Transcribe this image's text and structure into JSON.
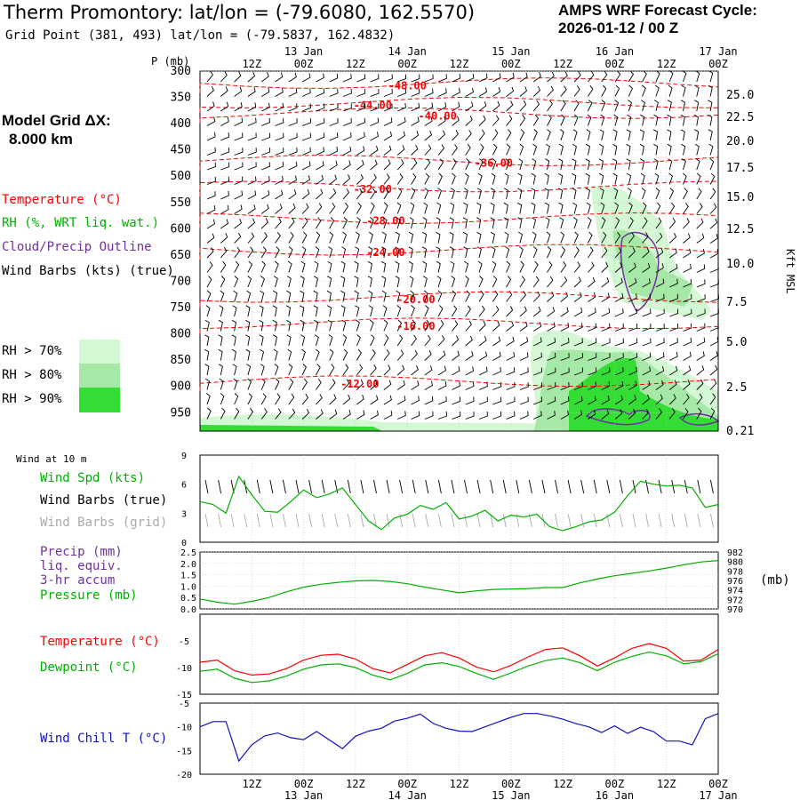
{
  "header": {
    "title": "Therm Promontory:  lat/lon = (-79.6080, 162.5570)",
    "subtitle": "Grid Point (381, 493) lat/lon = (-79.5837, 162.4832)",
    "cycle_line1": "AMPS WRF Forecast Cycle:",
    "cycle_line2": "2026-01-12 / 00  Z",
    "grid_label": "Model Grid ΔX:",
    "grid_value": "8.000 km"
  },
  "legend": {
    "temperature": "Temperature (°C)",
    "rh": "RH (%, WRT liq. wat.)",
    "cloud": "Cloud/Precip Outline",
    "wind": "Wind Barbs (kts) (true)",
    "rh70": "RH > 70%",
    "rh80": "RH > 80%",
    "rh90": "RH > 90%",
    "wind10m": "Wind at 10 m",
    "wind_spd": "Wind Spd (kts)",
    "wind_barbs_true": "Wind Barbs (true)",
    "wind_barbs_grid": "Wind Barbs (grid)",
    "precip1": "Precip (mm)",
    "precip2": "liq. equiv.",
    "precip3": "3-hr accum",
    "pressure": "Pressure (mb)",
    "pressure_unit": "(mb)",
    "temp2": "Temperature (°C)",
    "dewpoint": "Dewpoint (°C)",
    "windchill": "Wind Chill T (°C)"
  },
  "colors": {
    "temperature": "#ff0000",
    "rh": "#00b000",
    "cloud": "#7030a0",
    "wind": "#000000",
    "grid_barbs": "#aaaaaa",
    "windchill": "#1010c0",
    "rh70": "#d4f7d4",
    "rh80": "#a6e8a6",
    "rh90": "#33dd33"
  },
  "chart_data": [
    {
      "type": "line",
      "name": "time-height cross section",
      "ylabel": "P (mb)",
      "y2label": "Kft MSL",
      "time_axis": {
        "hours": [
          12,
          24,
          36,
          48,
          60,
          72,
          84,
          96,
          108,
          120
        ],
        "labels": [
          "12Z",
          "00Z",
          "12Z",
          "00Z",
          "12Z",
          "00Z",
          "12Z",
          "00Z",
          "12Z",
          "00Z"
        ],
        "days": [
          {
            "hour": 24,
            "label": "13 Jan"
          },
          {
            "hour": 48,
            "label": "14 Jan"
          },
          {
            "hour": 72,
            "label": "15 Jan"
          },
          {
            "hour": 96,
            "label": "16 Jan"
          },
          {
            "hour": 120,
            "label": "17 Jan"
          }
        ],
        "xlim": [
          0,
          120
        ]
      },
      "pressure_ticks": [
        "300",
        "350",
        "400",
        "450",
        "500",
        "550",
        "600",
        "650",
        "700",
        "750",
        "800",
        "850",
        "900",
        "950"
      ],
      "height_ticks": [
        "25.0",
        "22.5",
        "20.0",
        "17.5",
        "15.0",
        "12.5",
        "10.0",
        "7.5",
        "5.0",
        "2.5",
        "0.21"
      ],
      "isotherm_labels": [
        {
          "hour": 48,
          "p": 328,
          "label": "-48.00"
        },
        {
          "hour": 40,
          "p": 365,
          "label": "-44.00"
        },
        {
          "hour": 55,
          "p": 385,
          "label": "-40.00"
        },
        {
          "hour": 68,
          "p": 475,
          "label": "-36.00"
        },
        {
          "hour": 40,
          "p": 525,
          "label": "-32.00"
        },
        {
          "hour": 43,
          "p": 585,
          "label": "-28.00"
        },
        {
          "hour": 43,
          "p": 645,
          "label": "-24.00"
        },
        {
          "hour": 50,
          "p": 735,
          "label": "-20.00"
        },
        {
          "hour": 50,
          "p": 785,
          "label": "-16.00"
        },
        {
          "hour": 37,
          "p": 895,
          "label": "-12.00"
        }
      ]
    },
    {
      "type": "line",
      "name": "10 m wind speed",
      "ylabel": "Wind Spd (kts)",
      "ylim": [
        0,
        9
      ],
      "yticks": [
        "0",
        "3",
        "6",
        "9"
      ],
      "x": [
        0,
        3,
        6,
        9,
        12,
        15,
        18,
        21,
        24,
        27,
        30,
        33,
        36,
        39,
        42,
        45,
        48,
        51,
        54,
        57,
        60,
        63,
        66,
        69,
        72,
        75,
        78,
        81,
        84,
        87,
        90,
        93,
        96,
        99,
        102,
        105,
        108,
        111,
        114,
        117,
        120
      ],
      "values": [
        4.2,
        3.9,
        3.0,
        6.8,
        4.9,
        3.2,
        3.1,
        4.2,
        5.4,
        4.6,
        5.0,
        5.6,
        3.9,
        2.2,
        1.3,
        2.5,
        2.9,
        3.8,
        3.4,
        4.1,
        2.4,
        2.7,
        3.3,
        2.2,
        2.8,
        2.6,
        2.9,
        1.6,
        1.2,
        1.6,
        2.1,
        2.3,
        3.1,
        4.8,
        6.3,
        6.0,
        5.8,
        5.9,
        5.6,
        3.6,
        3.9
      ]
    },
    {
      "type": "line",
      "name": "surface pressure",
      "ylabel": "Pressure (mb)",
      "ylim": [
        970,
        982
      ],
      "yticks_left": [
        "0.0",
        "0.5",
        "1.0",
        "1.5",
        "2.0",
        "2.5"
      ],
      "yticks_right": [
        "970",
        "972",
        "974",
        "976",
        "978",
        "980",
        "982"
      ],
      "x": [
        0,
        4,
        8,
        12,
        16,
        20,
        24,
        28,
        32,
        36,
        40,
        44,
        48,
        52,
        56,
        60,
        64,
        68,
        72,
        76,
        80,
        84,
        88,
        92,
        96,
        100,
        104,
        108,
        112,
        116,
        120
      ],
      "values": [
        972.1,
        971.4,
        971.0,
        971.6,
        972.4,
        973.6,
        974.6,
        975.2,
        975.6,
        975.9,
        976.0,
        975.8,
        975.3,
        974.6,
        974.0,
        973.4,
        973.8,
        974.1,
        974.2,
        974.3,
        974.5,
        974.5,
        975.5,
        976.3,
        977.0,
        977.5,
        978.0,
        978.6,
        979.3,
        979.9,
        980.2
      ]
    },
    {
      "type": "line",
      "name": "temperature and dewpoint",
      "ylim": [
        -15,
        0
      ],
      "yticks": [
        "-15",
        "-10",
        "-5"
      ],
      "x": [
        0,
        4,
        8,
        12,
        16,
        20,
        24,
        28,
        32,
        36,
        40,
        44,
        48,
        52,
        56,
        60,
        64,
        68,
        72,
        76,
        80,
        84,
        88,
        92,
        96,
        100,
        104,
        108,
        112,
        116,
        120
      ],
      "series": [
        {
          "name": "Temperature",
          "values": [
            -9.0,
            -8.6,
            -10.6,
            -11.4,
            -11.2,
            -10.2,
            -8.6,
            -7.7,
            -7.5,
            -8.4,
            -10.2,
            -11.0,
            -9.4,
            -7.8,
            -7.2,
            -8.2,
            -9.9,
            -10.8,
            -9.6,
            -8.0,
            -6.6,
            -6.3,
            -7.8,
            -9.7,
            -8.2,
            -6.4,
            -5.5,
            -6.4,
            -8.8,
            -8.6,
            -6.6
          ]
        },
        {
          "name": "Dewpoint",
          "values": [
            -10.7,
            -10.3,
            -12.0,
            -12.8,
            -12.5,
            -11.6,
            -10.3,
            -9.5,
            -9.3,
            -10.0,
            -11.4,
            -12.3,
            -11.1,
            -9.5,
            -9.1,
            -9.8,
            -11.1,
            -12.2,
            -11.0,
            -9.7,
            -8.7,
            -8.2,
            -9.1,
            -10.6,
            -9.0,
            -7.9,
            -7.1,
            -7.8,
            -9.3,
            -8.9,
            -7.4
          ]
        }
      ]
    },
    {
      "type": "line",
      "name": "wind chill",
      "ylabel": "Wind Chill T (°C)",
      "ylim": [
        -20,
        -5
      ],
      "yticks": [
        "-20",
        "-15",
        "-10",
        "-5"
      ],
      "x": [
        0,
        3,
        6,
        9,
        12,
        15,
        18,
        21,
        24,
        27,
        30,
        33,
        36,
        39,
        42,
        45,
        48,
        51,
        54,
        57,
        60,
        63,
        66,
        69,
        72,
        75,
        78,
        81,
        84,
        87,
        90,
        93,
        96,
        99,
        102,
        105,
        108,
        111,
        114,
        117,
        120
      ],
      "values": [
        -10.0,
        -8.9,
        -8.9,
        -17.2,
        -13.8,
        -11.9,
        -11.3,
        -12.3,
        -12.7,
        -11.0,
        -12.8,
        -14.6,
        -12.0,
        -10.9,
        -10.3,
        -8.8,
        -8.2,
        -7.3,
        -9.3,
        -10.3,
        -10.9,
        -11.0,
        -10.0,
        -9.0,
        -8.0,
        -7.2,
        -7.2,
        -7.7,
        -8.4,
        -9.3,
        -10.0,
        -11.2,
        -9.8,
        -11.4,
        -10.1,
        -11.0,
        -13.0,
        -13.0,
        -13.8,
        -8.3,
        -7.2
      ]
    }
  ]
}
